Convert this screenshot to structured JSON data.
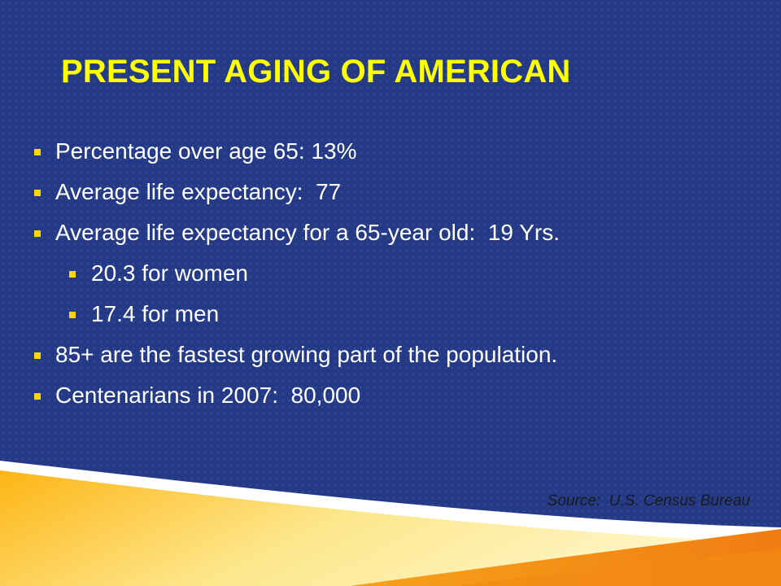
{
  "title": "PRESENT AGING OF AMERICAN",
  "bullets": [
    {
      "text": "Percentage over age 65: 13%"
    },
    {
      "text": "Average life expectancy:  77"
    },
    {
      "text": "Average life expectancy for a 65-year old:  19 Yrs.",
      "sub": [
        "20.3 for women",
        "17.4 for men"
      ]
    },
    {
      "text": "85+ are the fastest growing part of the population."
    },
    {
      "text": "Centenarians in 2007:  80,000"
    }
  ],
  "source": "Source:  U.S. Census Bureau"
}
